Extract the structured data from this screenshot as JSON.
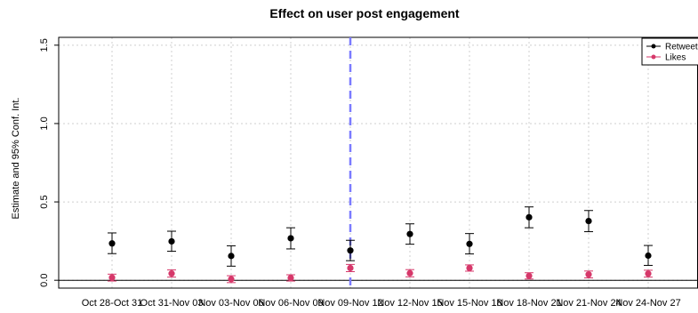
{
  "chart_data": {
    "type": "scatter",
    "title": "Effect on user post engagement",
    "xlabel": "",
    "ylabel": "Estimate and 95% Conf. Int.",
    "categories": [
      "Oct 28-Oct 31",
      "Oct 31-Nov 03",
      "Nov 03-Nov 06",
      "Nov 06-Nov 09",
      "Nov 09-Nov 12",
      "Nov 12-Nov 15",
      "Nov 15-Nov 18",
      "Nov 18-Nov 21",
      "Nov 21-Nov 24",
      "Nov 24-Nov 27"
    ],
    "ylim": [
      -0.05,
      1.55
    ],
    "yticks": [
      0.0,
      0.5,
      1.0,
      1.5
    ],
    "ytick_labels": [
      "0.0",
      "0.5",
      "1.0",
      "1.5"
    ],
    "grid": true,
    "legend_position": "top-right",
    "vline_category": "Nov 09-Nov 12",
    "vline_color": "#7b7bff",
    "series": [
      {
        "name": "Retweets",
        "color": "#000000",
        "values": [
          0.235,
          0.248,
          0.155,
          0.268,
          0.19,
          0.295,
          0.232,
          0.402,
          0.378,
          0.157
        ],
        "lower": [
          0.17,
          0.185,
          0.09,
          0.2,
          0.125,
          0.23,
          0.168,
          0.335,
          0.31,
          0.095
        ],
        "upper": [
          0.302,
          0.313,
          0.22,
          0.335,
          0.255,
          0.36,
          0.298,
          0.468,
          0.445,
          0.222
        ]
      },
      {
        "name": "Likes",
        "color": "#d6386a",
        "values": [
          0.017,
          0.043,
          0.007,
          0.015,
          0.078,
          0.045,
          0.078,
          0.028,
          0.037,
          0.042
        ],
        "lower": [
          -0.005,
          0.02,
          -0.015,
          -0.005,
          0.055,
          0.022,
          0.058,
          0.008,
          0.015,
          0.02
        ],
        "upper": [
          0.039,
          0.066,
          0.029,
          0.035,
          0.101,
          0.068,
          0.098,
          0.048,
          0.059,
          0.064
        ]
      }
    ]
  }
}
